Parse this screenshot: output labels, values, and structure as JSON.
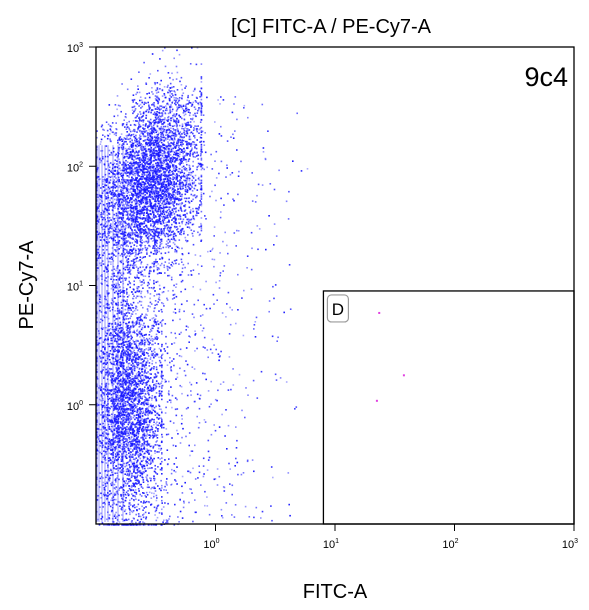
{
  "chart_data": {
    "type": "scatter",
    "title": "[C] FITC-A / PE-Cy7-A",
    "sample_label": "9c4",
    "xlabel": "FITC-A",
    "ylabel": "PE-Cy7-A",
    "x_scale": "log",
    "y_scale": "log",
    "xlim": [
      0.1,
      1000
    ],
    "ylim": [
      0.1,
      1000
    ],
    "x_ticks": [
      {
        "base": "10",
        "exp": "0",
        "value": 1
      },
      {
        "base": "10",
        "exp": "1",
        "value": 10
      },
      {
        "base": "10",
        "exp": "2",
        "value": 100
      },
      {
        "base": "10",
        "exp": "3",
        "value": 1000
      }
    ],
    "y_ticks": [
      {
        "base": "10",
        "exp": "0",
        "value": 1
      },
      {
        "base": "10",
        "exp": "1",
        "value": 10
      },
      {
        "base": "10",
        "exp": "2",
        "value": 100
      },
      {
        "base": "10",
        "exp": "3",
        "value": 1000
      }
    ],
    "grid": false,
    "gates": [
      {
        "name": "D",
        "x_range": [
          8,
          1000
        ],
        "y_range": [
          0.1,
          9
        ]
      }
    ],
    "series": [
      {
        "color": "#1a1aff",
        "clusters": [
          {
            "x": [
              0.1,
              0.75
            ],
            "y": [
              15,
              400
            ],
            "weight": 0.5
          },
          {
            "x": [
              0.1,
              0.35
            ],
            "y": [
              0.1,
              12
            ],
            "weight": 0.4
          },
          {
            "x": [
              0.3,
              6
            ],
            "y": [
              0.1,
              400
            ],
            "weight": 0.1
          }
        ]
      },
      {
        "color": "#e040e0",
        "points": [
          {
            "x": 23,
            "y": 6
          },
          {
            "x": 37,
            "y": 1.8
          },
          {
            "x": 22,
            "y": 1.1
          }
        ]
      }
    ]
  }
}
